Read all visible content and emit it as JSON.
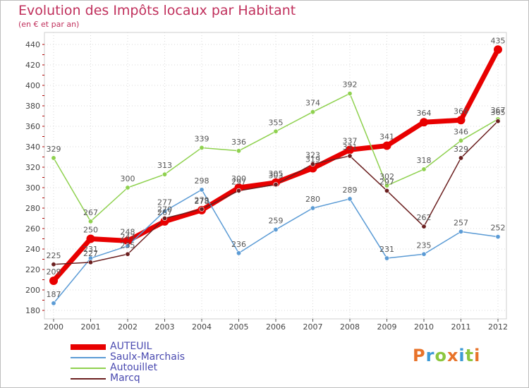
{
  "header": {
    "title": "Evolution des Impôts locaux par Habitant",
    "subtitle": "(en € et par an)"
  },
  "logo": {
    "text": "Proxiti",
    "letters": [
      {
        "ch": "P",
        "color": "#e8732a"
      },
      {
        "ch": "r",
        "color": "#3d9ad6"
      },
      {
        "ch": "o",
        "color": "#8cc63f"
      },
      {
        "ch": "x",
        "color": "#e8732a"
      },
      {
        "ch": "i",
        "color": "#3d9ad6"
      },
      {
        "ch": "t",
        "color": "#8cc63f"
      },
      {
        "ch": "i",
        "color": "#e8732a"
      }
    ]
  },
  "chart_data": {
    "type": "line",
    "title": "Evolution des Impôts locaux par Habitant",
    "subtitle": "(en € et par an)",
    "xlabel": "",
    "ylabel": "",
    "ylim": [
      180,
      440
    ],
    "yticks": [
      180,
      200,
      220,
      240,
      260,
      280,
      300,
      320,
      340,
      360,
      380,
      400,
      420,
      440
    ],
    "categories": [
      "2000",
      "2001",
      "2002",
      "2003",
      "2004",
      "2005",
      "2006",
      "2007",
      "2008",
      "2009",
      "2010",
      "2011",
      "2012"
    ],
    "legend_position": "bottom-left",
    "series": [
      {
        "name": "AUTEUIL",
        "color": "#e80000",
        "values": [
          209,
          250,
          248,
          267,
          278,
          300,
          305,
          319,
          337,
          341,
          364,
          366,
          435
        ]
      },
      {
        "name": "Saulx-Marchais",
        "color": "#5b9bd5",
        "values": [
          187,
          231,
          243,
          277,
          298,
          236,
          259,
          280,
          289,
          231,
          235,
          257,
          252
        ]
      },
      {
        "name": "Autouillet",
        "color": "#8fd14f",
        "values": [
          329,
          267,
          300,
          313,
          339,
          336,
          355,
          374,
          392,
          302,
          318,
          346,
          367
        ]
      },
      {
        "name": "Marcq",
        "color": "#6b1f1f",
        "values": [
          225,
          227,
          235,
          270,
          279,
          297,
          303,
          323,
          331,
          297,
          262,
          329,
          365
        ]
      }
    ]
  }
}
